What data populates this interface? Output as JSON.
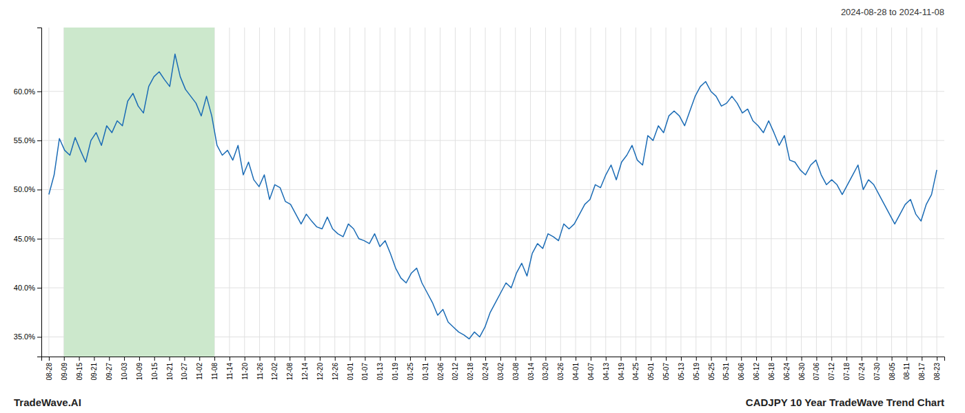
{
  "chart_data": {
    "type": "line",
    "title": "CADJPY 10 Year TradeWave Trend Chart",
    "subtitle": "2024-08-28 to 2024-11-08",
    "annotations": [
      "TradeWave.AI"
    ],
    "color": "#1a6bb5",
    "grid": true,
    "xlim": [
      -0.5,
      59.5
    ],
    "xticks": [
      {
        "value": 0,
        "label": "08-28"
      },
      {
        "value": 1,
        "label": "09-09"
      },
      {
        "value": 2,
        "label": "09-15"
      },
      {
        "value": 3,
        "label": "09-21"
      },
      {
        "value": 4,
        "label": "09-27"
      },
      {
        "value": 5,
        "label": "10-03"
      },
      {
        "value": 6,
        "label": "10-09"
      },
      {
        "value": 7,
        "label": "10-15"
      },
      {
        "value": 8,
        "label": "10-21"
      },
      {
        "value": 9,
        "label": "10-27"
      },
      {
        "value": 10,
        "label": "11-02"
      },
      {
        "value": 11,
        "label": "11-08"
      },
      {
        "value": 12,
        "label": "11-14"
      },
      {
        "value": 13,
        "label": "11-20"
      },
      {
        "value": 14,
        "label": "11-26"
      },
      {
        "value": 15,
        "label": "12-02"
      },
      {
        "value": 16,
        "label": "12-08"
      },
      {
        "value": 17,
        "label": "12-14"
      },
      {
        "value": 18,
        "label": "12-20"
      },
      {
        "value": 19,
        "label": "12-26"
      },
      {
        "value": 20,
        "label": "01-01"
      },
      {
        "value": 21,
        "label": "01-07"
      },
      {
        "value": 22,
        "label": "01-13"
      },
      {
        "value": 23,
        "label": "01-19"
      },
      {
        "value": 24,
        "label": "01-25"
      },
      {
        "value": 25,
        "label": "01-31"
      },
      {
        "value": 26,
        "label": "02-06"
      },
      {
        "value": 27,
        "label": "02-12"
      },
      {
        "value": 28,
        "label": "02-18"
      },
      {
        "value": 29,
        "label": "02-24"
      },
      {
        "value": 30,
        "label": "03-02"
      },
      {
        "value": 31,
        "label": "03-08"
      },
      {
        "value": 32,
        "label": "03-14"
      },
      {
        "value": 33,
        "label": "03-20"
      },
      {
        "value": 34,
        "label": "03-26"
      },
      {
        "value": 35,
        "label": "04-01"
      },
      {
        "value": 36,
        "label": "04-07"
      },
      {
        "value": 37,
        "label": "04-13"
      },
      {
        "value": 38,
        "label": "04-19"
      },
      {
        "value": 39,
        "label": "04-25"
      },
      {
        "value": 40,
        "label": "05-01"
      },
      {
        "value": 41,
        "label": "05-07"
      },
      {
        "value": 42,
        "label": "05-13"
      },
      {
        "value": 43,
        "label": "05-19"
      },
      {
        "value": 44,
        "label": "05-25"
      },
      {
        "value": 45,
        "label": "05-31"
      },
      {
        "value": 46,
        "label": "06-06"
      },
      {
        "value": 47,
        "label": "06-12"
      },
      {
        "value": 48,
        "label": "06-18"
      },
      {
        "value": 49,
        "label": "06-24"
      },
      {
        "value": 50,
        "label": "06-30"
      },
      {
        "value": 51,
        "label": "07-06"
      },
      {
        "value": 52,
        "label": "07-12"
      },
      {
        "value": 53,
        "label": "07-18"
      },
      {
        "value": 54,
        "label": "07-24"
      },
      {
        "value": 55,
        "label": "07-30"
      },
      {
        "value": 56,
        "label": "08-05"
      },
      {
        "value": 57,
        "label": "08-11"
      },
      {
        "value": 58,
        "label": "08-17"
      },
      {
        "value": 59,
        "label": "08-23"
      }
    ],
    "ylim": [
      33.0,
      66.5
    ],
    "yticks": [
      {
        "value": 35.0,
        "label": "35.0%"
      },
      {
        "value": 40.0,
        "label": "40.0%"
      },
      {
        "value": 45.0,
        "label": "45.0%"
      },
      {
        "value": 50.0,
        "label": "50.0%"
      },
      {
        "value": 55.0,
        "label": "55.0%"
      },
      {
        "value": 60.0,
        "label": "60.0%"
      }
    ],
    "spans": [
      {
        "xlim": [
          1,
          11
        ],
        "color": "#cce8cc"
      }
    ],
    "values": [
      49.5,
      51.5,
      55.2,
      54.0,
      53.5,
      55.3,
      54.0,
      52.8,
      55.0,
      55.8,
      54.5,
      56.5,
      55.8,
      57.0,
      56.5,
      59.0,
      59.8,
      58.5,
      57.8,
      60.5,
      61.5,
      62.0,
      61.2,
      60.5,
      63.8,
      61.5,
      60.2,
      59.5,
      58.8,
      57.5,
      59.5,
      57.5,
      54.5,
      53.5,
      54.0,
      53.0,
      54.5,
      51.5,
      52.8,
      51.0,
      50.3,
      51.5,
      49.0,
      50.5,
      50.2,
      48.8,
      48.5,
      47.5,
      46.5,
      47.5,
      46.8,
      46.2,
      46.0,
      47.2,
      46.0,
      45.5,
      45.2,
      46.5,
      46.0,
      45.0,
      44.8,
      44.5,
      45.5,
      44.2,
      44.8,
      43.5,
      42.0,
      41.0,
      40.5,
      41.5,
      42.0,
      40.5,
      39.5,
      38.5,
      37.2,
      37.8,
      36.5,
      36.0,
      35.5,
      35.2,
      34.8,
      35.5,
      35.0,
      36.0,
      37.5,
      38.5,
      39.5,
      40.5,
      40.0,
      41.5,
      42.5,
      41.2,
      43.5,
      44.5,
      44.0,
      45.5,
      45.2,
      44.8,
      46.5,
      46.0,
      46.5,
      47.5,
      48.5,
      49.0,
      50.5,
      50.2,
      51.5,
      52.5,
      51.0,
      52.8,
      53.5,
      54.5,
      53.0,
      52.5,
      55.5,
      55.0,
      56.5,
      55.8,
      57.5,
      58.0,
      57.5,
      56.5,
      58.0,
      59.5,
      60.5,
      61.0,
      60.0,
      59.5,
      58.5,
      58.8,
      59.5,
      58.8,
      57.8,
      58.2,
      57.0,
      56.5,
      55.8,
      57.0,
      55.8,
      54.5,
      55.5,
      53.0,
      52.8,
      52.0,
      51.5,
      52.5,
      53.0,
      51.5,
      50.5,
      51.0,
      50.5,
      49.5,
      50.5,
      51.5,
      52.5,
      50.0,
      51.0,
      50.5,
      49.5,
      48.5,
      47.5,
      46.5,
      47.5,
      48.5,
      49.0,
      47.5,
      46.8,
      48.5,
      49.5,
      52.0
    ]
  }
}
